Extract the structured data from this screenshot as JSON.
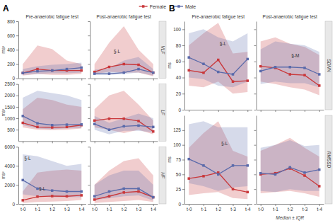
{
  "chart_data": [
    {
      "type": "line",
      "title": "Pre-anaerobic fatigue test",
      "ylabel": "ms²",
      "categories": [
        "t-0",
        "t-1",
        "t-2",
        "t-3",
        "t-4"
      ],
      "tick_labels": "y",
      "ylim": [
        0,
        800
      ],
      "yticks": [
        0,
        200,
        400,
        600,
        800
      ],
      "grid": false,
      "legend": "top",
      "annotations": [
        {
          "text": "A"
        }
      ],
      "series": [
        {
          "name": "Female",
          "color": "#c9373a",
          "marker": "square",
          "values": [
            75,
            130,
            110,
            110,
            110
          ],
          "lower": [
            40,
            60,
            50,
            50,
            60
          ],
          "upper": [
            200,
            460,
            410,
            250,
            200
          ]
        },
        {
          "name": "Male",
          "color": "#5a6aaa",
          "marker": "square",
          "values": [
            75,
            100,
            110,
            130,
            150
          ],
          "lower": [
            50,
            60,
            70,
            70,
            80
          ],
          "upper": [
            130,
            170,
            190,
            200,
            220
          ]
        }
      ]
    },
    {
      "type": "line",
      "title": "Post-anaerobic fatigue test",
      "subtitle": "VLF",
      "categories": [
        "t-0",
        "t-1",
        "t-2",
        "t-3",
        "t-4"
      ],
      "tick_labels": false,
      "ylim": [
        0,
        800
      ],
      "yticks": [
        0,
        200,
        400,
        600,
        800
      ],
      "grid": false,
      "annotations": [
        {
          "text": "§-L",
          "x": 1.3,
          "y": 350
        }
      ],
      "series": [
        {
          "name": "Female",
          "color": "#c9373a",
          "marker": "square",
          "values": [
            90,
            160,
            200,
            190,
            80
          ],
          "lower": [
            60,
            90,
            80,
            80,
            30
          ],
          "upper": [
            200,
            500,
            730,
            400,
            200
          ]
        },
        {
          "name": "Male",
          "color": "#5a6aaa",
          "marker": "square",
          "values": [
            65,
            65,
            80,
            130,
            80
          ],
          "lower": [
            50,
            50,
            60,
            80,
            40
          ],
          "upper": [
            120,
            140,
            250,
            300,
            130
          ]
        }
      ]
    },
    {
      "type": "line",
      "ylabel": "ms²",
      "categories": [
        "t-0",
        "t-1",
        "t-2",
        "t-3",
        "t-4"
      ],
      "tick_labels": "y",
      "ylim": [
        0,
        2500
      ],
      "yticks": [
        500,
        1000,
        1500,
        2000,
        2500
      ],
      "grid": false,
      "series": [
        {
          "name": "Female",
          "color": "#c9373a",
          "marker": "square",
          "values": [
            800,
            620,
            600,
            620,
            700
          ],
          "lower": [
            600,
            500,
            480,
            500,
            550
          ],
          "upper": [
            1400,
            1900,
            1800,
            1600,
            1500
          ]
        },
        {
          "name": "Male",
          "color": "#5a6aaa",
          "marker": "square",
          "values": [
            1100,
            780,
            700,
            720,
            730
          ],
          "lower": [
            700,
            550,
            520,
            560,
            570
          ],
          "upper": [
            1900,
            2200,
            2100,
            2000,
            1800
          ]
        }
      ]
    },
    {
      "type": "line",
      "subtitle": "LF",
      "categories": [
        "t-0",
        "t-1",
        "t-2",
        "t-3",
        "t-4"
      ],
      "tick_labels": false,
      "ylim": [
        0,
        2500
      ],
      "yticks": [
        500,
        1000,
        1500,
        2000,
        2500
      ],
      "grid": false,
      "series": [
        {
          "name": "Female",
          "color": "#c9373a",
          "marker": "square",
          "values": [
            900,
            980,
            980,
            880,
            420
          ],
          "lower": [
            600,
            500,
            350,
            500,
            300
          ],
          "upper": [
            1400,
            2000,
            2200,
            1600,
            900
          ]
        },
        {
          "name": "Male",
          "color": "#5a6aaa",
          "marker": "square",
          "values": [
            750,
            500,
            650,
            680,
            620
          ],
          "lower": [
            500,
            300,
            450,
            450,
            380
          ],
          "upper": [
            1100,
            800,
            1000,
            1200,
            1000
          ]
        }
      ]
    },
    {
      "type": "line",
      "ylabel": "ms²",
      "categories": [
        "t-0",
        "t-1",
        "t-2",
        "t-3",
        "t-4"
      ],
      "ylim": [
        0,
        6000
      ],
      "yticks": [
        0,
        2000,
        4000,
        6000
      ],
      "grid": false,
      "annotations": [
        {
          "text": "§-L",
          "x": 0.1,
          "y": 4600
        },
        {
          "text": "§-L",
          "x": 1.1,
          "y": 1400
        }
      ],
      "series": [
        {
          "name": "Female",
          "color": "#c9373a",
          "marker": "square",
          "values": [
            380,
            760,
            820,
            800,
            900
          ],
          "lower": [
            100,
            200,
            250,
            300,
            400
          ],
          "upper": [
            1300,
            3300,
            3500,
            3600,
            3500
          ]
        },
        {
          "name": "Male",
          "color": "#5a6aaa",
          "marker": "square",
          "values": [
            2500,
            1600,
            1400,
            1300,
            1300
          ],
          "lower": [
            1000,
            800,
            700,
            700,
            700
          ],
          "upper": [
            5200,
            5000,
            4500,
            4000,
            4200
          ]
        }
      ]
    },
    {
      "type": "line",
      "subtitle": "HF",
      "categories": [
        "t-0",
        "t-1",
        "t-2",
        "t-3",
        "t-4"
      ],
      "tick_labels": "x",
      "ylim": [
        0,
        6000
      ],
      "yticks": [
        0,
        2000,
        4000,
        6000
      ],
      "grid": false,
      "series": [
        {
          "name": "Female",
          "color": "#c9373a",
          "marker": "square",
          "values": [
            450,
            800,
            1200,
            1300,
            700
          ],
          "lower": [
            100,
            200,
            300,
            400,
            200
          ],
          "upper": [
            2000,
            3500,
            4500,
            4800,
            3000
          ]
        },
        {
          "name": "Male",
          "color": "#5a6aaa",
          "marker": "square",
          "values": [
            800,
            1300,
            1600,
            1600,
            700
          ],
          "lower": [
            400,
            600,
            800,
            900,
            350
          ],
          "upper": [
            2000,
            3000,
            3500,
            3500,
            2000
          ]
        }
      ]
    },
    {
      "type": "line",
      "title": "Pre-anaerobic fatigue test",
      "ylabel": "ms",
      "categories": [
        "t-0",
        "t-1",
        "t-2",
        "t-3",
        "t-4"
      ],
      "tick_labels": "y",
      "ylim": [
        0,
        110
      ],
      "yticks": [
        0,
        20,
        40,
        60,
        80,
        100
      ],
      "grid": false,
      "annotations": [
        {
          "text": "B"
        },
        {
          "text": "§-L",
          "x": 2.1,
          "y": 80
        }
      ],
      "series": [
        {
          "name": "Female",
          "color": "#c9373a",
          "marker": "square",
          "values": [
            49,
            46,
            62,
            35,
            36
          ],
          "lower": [
            30,
            28,
            35,
            20,
            22
          ],
          "upper": [
            80,
            95,
            108,
            70,
            72
          ]
        },
        {
          "name": "Male",
          "color": "#5a6aaa",
          "marker": "square",
          "values": [
            65,
            57,
            47,
            44,
            63
          ],
          "lower": [
            40,
            38,
            30,
            28,
            35
          ],
          "upper": [
            95,
            100,
            90,
            85,
            95
          ]
        }
      ]
    },
    {
      "type": "line",
      "title": "Post-anaerobic fatigue test",
      "subtitle": "SDNN",
      "categories": [
        "t-0",
        "t-1",
        "t-2",
        "t-3",
        "t-4"
      ],
      "tick_labels": false,
      "ylim": [
        0,
        110
      ],
      "yticks": [
        0,
        20,
        40,
        60,
        80,
        100
      ],
      "grid": false,
      "annotations": [
        {
          "text": "§-M",
          "x": 2.1,
          "y": 65
        }
      ],
      "series": [
        {
          "name": "Female",
          "color": "#c9373a",
          "marker": "square",
          "values": [
            54,
            52,
            44,
            43,
            30
          ],
          "lower": [
            35,
            32,
            28,
            25,
            18
          ],
          "upper": [
            85,
            90,
            82,
            78,
            68
          ]
        },
        {
          "name": "Male",
          "color": "#5a6aaa",
          "marker": "square",
          "values": [
            48,
            53,
            53,
            52,
            44
          ],
          "lower": [
            32,
            35,
            33,
            33,
            28
          ],
          "upper": [
            75,
            85,
            82,
            80,
            72
          ]
        }
      ]
    },
    {
      "type": "line",
      "ylabel": "ms",
      "categories": [
        "t-0",
        "t-1",
        "t-2",
        "t-3",
        "t-4"
      ],
      "ylim": [
        0,
        150
      ],
      "yticks": [
        0,
        25,
        50,
        75,
        100,
        125
      ],
      "grid": false,
      "annotations": [
        {
          "text": "§-L",
          "x": 2.2,
          "y": 100
        }
      ],
      "series": [
        {
          "name": "Female",
          "color": "#c9373a",
          "marker": "square",
          "values": [
            43,
            47,
            53,
            25,
            20
          ],
          "lower": [
            15,
            18,
            20,
            10,
            8
          ],
          "upper": [
            95,
            120,
            140,
            90,
            80
          ]
        },
        {
          "name": "Male",
          "color": "#5a6aaa",
          "marker": "square",
          "values": [
            76,
            65,
            50,
            65,
            65
          ],
          "lower": [
            35,
            30,
            22,
            28,
            30
          ],
          "upper": [
            135,
            140,
            130,
            130,
            130
          ]
        }
      ]
    },
    {
      "type": "line",
      "subtitle": "RMSSD",
      "categories": [
        "t-0",
        "t-1",
        "t-2",
        "t-3",
        "t-4"
      ],
      "tick_labels": "x",
      "ylim": [
        0,
        150
      ],
      "yticks": [
        0,
        25,
        50,
        75,
        100,
        125
      ],
      "grid": false,
      "annotations": [
        {
          "text": "Median ± IQR"
        }
      ],
      "series": [
        {
          "name": "Female",
          "color": "#c9373a",
          "marker": "square",
          "values": [
            50,
            52,
            60,
            48,
            30
          ],
          "lower": [
            18,
            20,
            22,
            18,
            12
          ],
          "upper": [
            90,
            100,
            112,
            95,
            80
          ]
        },
        {
          "name": "Male",
          "color": "#5a6aaa",
          "marker": "square",
          "values": [
            52,
            50,
            62,
            53,
            58
          ],
          "lower": [
            22,
            20,
            25,
            22,
            22
          ],
          "upper": [
            95,
            100,
            108,
            98,
            100
          ]
        }
      ]
    }
  ]
}
